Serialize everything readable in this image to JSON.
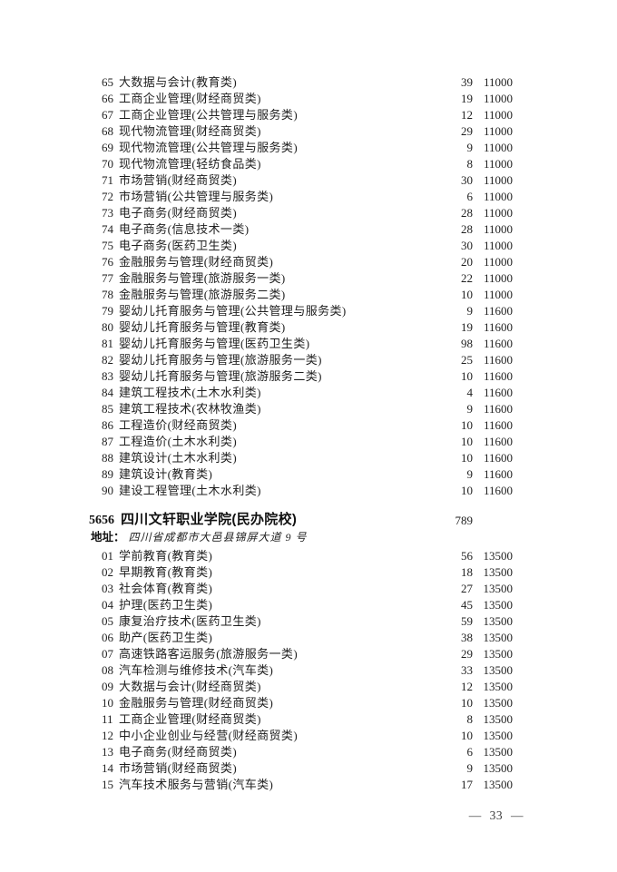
{
  "document": {
    "continued_rows": [
      {
        "no": "65",
        "major": "大数据与会计(教育类)",
        "count": "39",
        "tuition": "11000"
      },
      {
        "no": "66",
        "major": "工商企业管理(财经商贸类)",
        "count": "19",
        "tuition": "11000"
      },
      {
        "no": "67",
        "major": "工商企业管理(公共管理与服务类)",
        "count": "12",
        "tuition": "11000"
      },
      {
        "no": "68",
        "major": "现代物流管理(财经商贸类)",
        "count": "29",
        "tuition": "11000"
      },
      {
        "no": "69",
        "major": "现代物流管理(公共管理与服务类)",
        "count": "9",
        "tuition": "11000"
      },
      {
        "no": "70",
        "major": "现代物流管理(轻纺食品类)",
        "count": "8",
        "tuition": "11000"
      },
      {
        "no": "71",
        "major": "市场营销(财经商贸类)",
        "count": "30",
        "tuition": "11000"
      },
      {
        "no": "72",
        "major": "市场营销(公共管理与服务类)",
        "count": "6",
        "tuition": "11000"
      },
      {
        "no": "73",
        "major": "电子商务(财经商贸类)",
        "count": "28",
        "tuition": "11000"
      },
      {
        "no": "74",
        "major": "电子商务(信息技术一类)",
        "count": "28",
        "tuition": "11000"
      },
      {
        "no": "75",
        "major": "电子商务(医药卫生类)",
        "count": "30",
        "tuition": "11000"
      },
      {
        "no": "76",
        "major": "金融服务与管理(财经商贸类)",
        "count": "20",
        "tuition": "11000"
      },
      {
        "no": "77",
        "major": "金融服务与管理(旅游服务一类)",
        "count": "22",
        "tuition": "11000"
      },
      {
        "no": "78",
        "major": "金融服务与管理(旅游服务二类)",
        "count": "10",
        "tuition": "11000"
      },
      {
        "no": "79",
        "major": "婴幼儿托育服务与管理(公共管理与服务类)",
        "count": "9",
        "tuition": "11600"
      },
      {
        "no": "80",
        "major": "婴幼儿托育服务与管理(教育类)",
        "count": "19",
        "tuition": "11600"
      },
      {
        "no": "81",
        "major": "婴幼儿托育服务与管理(医药卫生类)",
        "count": "98",
        "tuition": "11600"
      },
      {
        "no": "82",
        "major": "婴幼儿托育服务与管理(旅游服务一类)",
        "count": "25",
        "tuition": "11600"
      },
      {
        "no": "83",
        "major": "婴幼儿托育服务与管理(旅游服务二类)",
        "count": "10",
        "tuition": "11600"
      },
      {
        "no": "84",
        "major": "建筑工程技术(土木水利类)",
        "count": "4",
        "tuition": "11600"
      },
      {
        "no": "85",
        "major": "建筑工程技术(农林牧渔类)",
        "count": "9",
        "tuition": "11600"
      },
      {
        "no": "86",
        "major": "工程造价(财经商贸类)",
        "count": "10",
        "tuition": "11600"
      },
      {
        "no": "87",
        "major": "工程造价(土木水利类)",
        "count": "10",
        "tuition": "11600"
      },
      {
        "no": "88",
        "major": "建筑设计(土木水利类)",
        "count": "10",
        "tuition": "11600"
      },
      {
        "no": "89",
        "major": "建筑设计(教育类)",
        "count": "9",
        "tuition": "11600"
      },
      {
        "no": "90",
        "major": "建设工程管理(土木水利类)",
        "count": "10",
        "tuition": "11600"
      }
    ],
    "school": {
      "code": "5656",
      "name": "四川文轩职业学院(民办院校)",
      "total_plan": "789",
      "address_label": "地址：",
      "address": "四川省成都市大邑县锦屏大道 9 号",
      "rows": [
        {
          "no": "01",
          "major": "学前教育(教育类)",
          "count": "56",
          "tuition": "13500"
        },
        {
          "no": "02",
          "major": "早期教育(教育类)",
          "count": "18",
          "tuition": "13500"
        },
        {
          "no": "03",
          "major": "社会体育(教育类)",
          "count": "27",
          "tuition": "13500"
        },
        {
          "no": "04",
          "major": "护理(医药卫生类)",
          "count": "45",
          "tuition": "13500"
        },
        {
          "no": "05",
          "major": "康复治疗技术(医药卫生类)",
          "count": "59",
          "tuition": "13500"
        },
        {
          "no": "06",
          "major": "助产(医药卫生类)",
          "count": "38",
          "tuition": "13500"
        },
        {
          "no": "07",
          "major": "高速铁路客运服务(旅游服务一类)",
          "count": "29",
          "tuition": "13500"
        },
        {
          "no": "08",
          "major": "汽车检测与维修技术(汽车类)",
          "count": "33",
          "tuition": "13500"
        },
        {
          "no": "09",
          "major": "大数据与会计(财经商贸类)",
          "count": "12",
          "tuition": "13500"
        },
        {
          "no": "10",
          "major": "金融服务与管理(财经商贸类)",
          "count": "10",
          "tuition": "13500"
        },
        {
          "no": "11",
          "major": "工商企业管理(财经商贸类)",
          "count": "8",
          "tuition": "13500"
        },
        {
          "no": "12",
          "major": "中小企业创业与经营(财经商贸类)",
          "count": "10",
          "tuition": "13500"
        },
        {
          "no": "13",
          "major": "电子商务(财经商贸类)",
          "count": "6",
          "tuition": "13500"
        },
        {
          "no": "14",
          "major": "市场营销(财经商贸类)",
          "count": "9",
          "tuition": "13500"
        },
        {
          "no": "15",
          "major": "汽车技术服务与营销(汽车类)",
          "count": "17",
          "tuition": "13500"
        }
      ]
    },
    "footer": {
      "page_number": "33",
      "display": "— 33 —"
    }
  }
}
